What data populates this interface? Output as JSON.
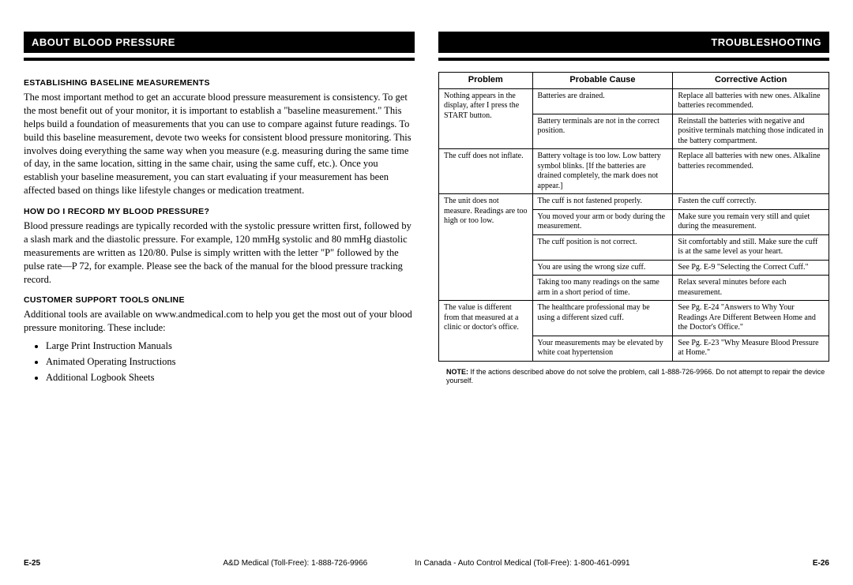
{
  "left": {
    "header": "ABOUT BLOOD PRESSURE",
    "sec1_head": "ESTABLISHING BASELINE MEASUREMENTS",
    "sec1_body": "The most important method to get an accurate blood pressure measurement is consistency. To get the most benefit out of your monitor, it is important to establish a \"baseline measurement.\" This helps build a foundation of measurements that you can use to compare against future readings. To build this baseline measurement, devote two weeks for consistent blood pressure monitoring. This involves doing everything the same way when you measure (e.g. measuring during the same time of day, in the same location, sitting in the same chair, using the same cuff, etc.). Once you establish your baseline measurement, you can start evaluating if your measurement has been affected based on things like lifestyle changes or medication treatment.",
    "sec2_head": "HOW DO I RECORD MY BLOOD PRESSURE?",
    "sec2_body": "Blood pressure readings are typically recorded with the systolic pressure written first, followed by a slash mark and the diastolic pressure. For example, 120 mmHg systolic and 80 mmHg diastolic measurements are written as 120/80. Pulse is simply written with the letter \"P\" followed by the pulse rate—P 72, for example. Please see the back of the manual for the blood pressure tracking record.",
    "sec3_head": "CUSTOMER SUPPORT TOOLS ONLINE",
    "sec3_body": "Additional tools are available on www.andmedical.com to help you get the most out of your blood pressure monitoring. These include:",
    "bullets": [
      "Large Print Instruction Manuals",
      "Animated Operating Instructions",
      "Additional Logbook Sheets"
    ],
    "page_num": "E-25"
  },
  "right": {
    "header": "TROUBLESHOOTING",
    "cols": [
      "Problem",
      "Probable Cause",
      "Corrective Action"
    ],
    "rows": [
      {
        "problem": "Nothing appears in the display, after I press the START button.",
        "span": 2,
        "causes": [
          [
            "Batteries are drained.",
            "Replace all batteries with new ones. Alkaline batteries recommended."
          ],
          [
            "Battery terminals are not in the correct position.",
            "Reinstall the batteries with negative and positive terminals matching those indicated in the battery compartment."
          ]
        ]
      },
      {
        "problem": "The cuff does not inflate.",
        "span": 1,
        "causes": [
          [
            "Battery voltage is too low. Low battery symbol blinks. [If the batteries are drained completely, the mark does not appear.]",
            "Replace all batteries with new ones. Alkaline batteries recommended."
          ]
        ]
      },
      {
        "problem": "The unit does not measure. Readings are too high or too low.",
        "span": 5,
        "causes": [
          [
            "The cuff is not fastened properly.",
            "Fasten the cuff correctly."
          ],
          [
            "You moved your arm or body during the measurement.",
            "Make sure you remain very still and quiet during the measurement."
          ],
          [
            "The cuff position is not correct.",
            "Sit comfortably and still. Make sure the cuff is at the same level as your heart."
          ],
          [
            "You are using the wrong size cuff.",
            "See Pg. E-9 \"Selecting the Correct Cuff.\""
          ],
          [
            "Taking too many readings on the same arm in a short period of time.",
            "Relax several minutes before each measurement."
          ]
        ]
      },
      {
        "problem": "The value is different from that measured at a clinic or doctor's office.",
        "span": 2,
        "causes": [
          [
            "The healthcare professional may be using a different sized cuff.",
            "See Pg. E-24 \"Answers to Why Your Readings Are Different Between Home and the Doctor's Office.\""
          ],
          [
            "Your measurements may be elevated by white coat hypertension",
            "See Pg. E-23 \"Why Measure Blood Pressure at Home.\""
          ]
        ]
      }
    ],
    "note_label": "NOTE:",
    "note_body": "If the actions described above do not solve the problem, call 1-888-726-9966. Do not attempt to repair the device yourself.",
    "page_num": "E-26"
  },
  "footer": {
    "center_left": "A&D Medical (Toll-Free): 1-888-726-9966",
    "center_right": "In Canada - Auto Control Medical (Toll-Free): 1-800-461-0991"
  }
}
